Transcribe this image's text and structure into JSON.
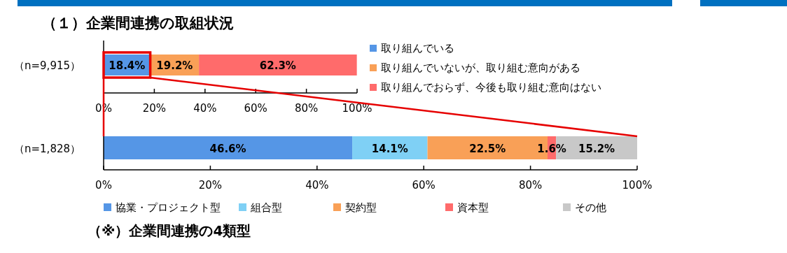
{
  "chart_data": [
    {
      "type": "bar",
      "orientation": "horizontal",
      "stacked": true,
      "title": "（１）企業間連携の取組状況",
      "categories": [
        "（n=9,915）"
      ],
      "series": [
        {
          "name": "取り組んでいる",
          "color": "#5596e6",
          "values": [
            18.4
          ],
          "value_labels": [
            "18.4%"
          ]
        },
        {
          "name": "取り組んでいないが、取り組む意向がある",
          "color": "#f9a057",
          "values": [
            19.2
          ],
          "value_labels": [
            "19.2%"
          ]
        },
        {
          "name": "取り組んでおらず、今後も取り組む意向はない",
          "color": "#ff6b6b",
          "values": [
            62.3
          ],
          "value_labels": [
            "62.3%"
          ]
        }
      ],
      "xlim": [
        0,
        100
      ],
      "xticks": [
        {
          "value": 0,
          "label": "0%"
        },
        {
          "value": 20,
          "label": "20%"
        },
        {
          "value": 40,
          "label": "40%"
        },
        {
          "value": 60,
          "label": "60%"
        },
        {
          "value": 80,
          "label": "80%"
        },
        {
          "value": 100,
          "label": "100%"
        }
      ],
      "legend": "right"
    },
    {
      "type": "bar",
      "orientation": "horizontal",
      "stacked": true,
      "categories": [
        "（n=1,828）"
      ],
      "series": [
        {
          "name": "協業・プロジェクト型",
          "color": "#5596e6",
          "values": [
            46.6
          ],
          "value_labels": [
            "46.6%"
          ]
        },
        {
          "name": "組合型",
          "color": "#7fd0f5",
          "values": [
            14.1
          ],
          "value_labels": [
            "14.1%"
          ]
        },
        {
          "name": "契約型",
          "color": "#f9a057",
          "values": [
            22.5
          ],
          "value_labels": [
            "22.5%"
          ]
        },
        {
          "name": "資本型",
          "color": "#ff6b6b",
          "values": [
            1.6
          ],
          "value_labels": [
            "1.6%"
          ]
        },
        {
          "name": "その他",
          "color": "#c8c8c8",
          "values": [
            15.2
          ],
          "value_labels": [
            "15.2%"
          ]
        }
      ],
      "xlim": [
        0,
        100
      ],
      "xticks": [
        {
          "value": 0,
          "label": "0%"
        },
        {
          "value": 20,
          "label": "20%"
        },
        {
          "value": 40,
          "label": "40%"
        },
        {
          "value": 60,
          "label": "60%"
        },
        {
          "value": 80,
          "label": "80%"
        },
        {
          "value": 100,
          "label": "100%"
        }
      ],
      "legend": "bottom",
      "annotations": [
        "（※）企業間連携の4類型"
      ]
    }
  ]
}
